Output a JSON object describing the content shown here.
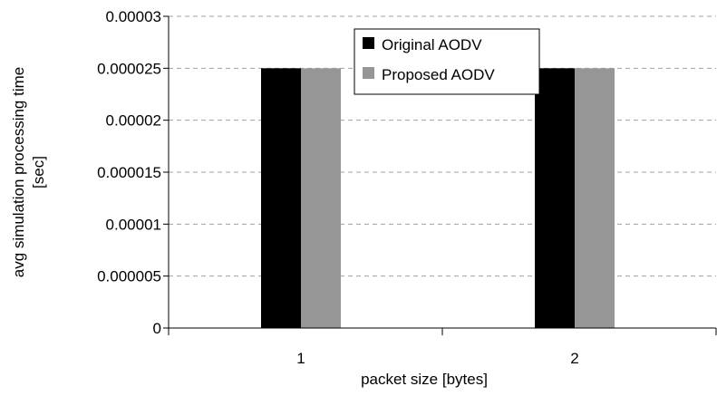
{
  "chart_data": {
    "type": "bar",
    "categories": [
      "1",
      "2"
    ],
    "series": [
      {
        "name": "Original AODV",
        "values": [
          2.5e-05,
          2.5e-05
        ],
        "color": "#000000"
      },
      {
        "name": "Proposed AODV",
        "values": [
          2.5e-05,
          2.5e-05
        ],
        "color": "#969696"
      }
    ],
    "xlabel": "packet size [bytes]",
    "ylabel_lines": [
      "avg simulation processing time",
      "[sec]"
    ],
    "ylim": [
      0,
      3e-05
    ],
    "y_ticks": [
      0,
      5e-06,
      1e-05,
      1.5e-05,
      2e-05,
      2.5e-05,
      3e-05
    ],
    "y_tick_labels": [
      "0",
      "0.000005",
      "0.00001",
      "0.000015",
      "0.00002",
      "0.000025",
      "0.00003"
    ],
    "grid": "horizontal dashed",
    "legend_position": "top-right"
  }
}
